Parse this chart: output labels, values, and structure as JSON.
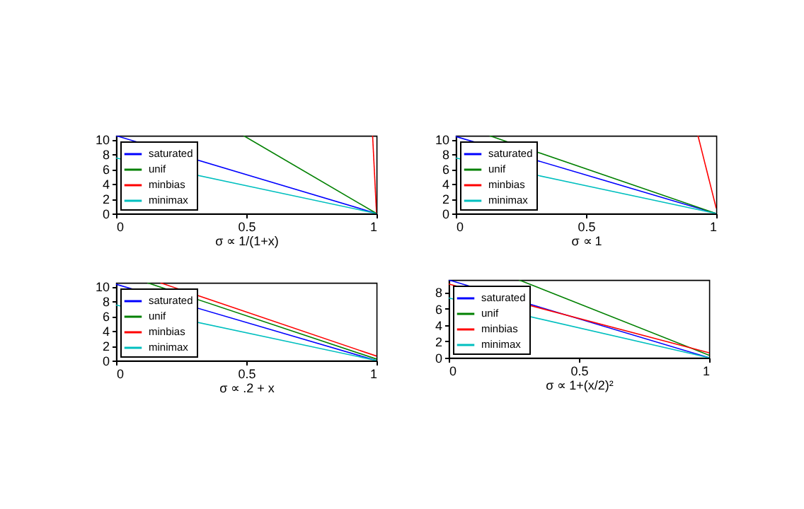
{
  "chart_data": [
    {
      "type": "line",
      "xlabel": "σ ∝ 1/(1+x)",
      "xlim": [
        0,
        1
      ],
      "xticks": [
        0,
        0.5,
        1
      ],
      "ylim": [
        0,
        10.5
      ],
      "yticks": [
        0,
        2,
        4,
        6,
        8,
        10
      ],
      "legend": "bottom left",
      "line_style": "solid",
      "series": [
        {
          "name": "saturated",
          "color": "#0000ff",
          "x": [
            0,
            1
          ],
          "values": [
            10.5,
            0
          ]
        },
        {
          "name": "unif",
          "color": "#008000",
          "x": [
            0.49,
            1
          ],
          "values": [
            10.5,
            0
          ]
        },
        {
          "name": "minbias",
          "color": "#ff0000",
          "x": [
            0.985,
            1
          ],
          "values": [
            10.5,
            0
          ]
        },
        {
          "name": "minimax",
          "color": "#00bfbf",
          "x": [
            0,
            1
          ],
          "values": [
            7.5,
            0
          ]
        }
      ]
    },
    {
      "type": "line",
      "xlabel": "σ ∝ 1",
      "xlim": [
        0,
        1
      ],
      "xticks": [
        0,
        0.5,
        1
      ],
      "ylim": [
        0,
        10.5
      ],
      "yticks": [
        0,
        2,
        4,
        6,
        8,
        10
      ],
      "legend": "bottom left",
      "line_style": "solid",
      "series": [
        {
          "name": "saturated",
          "color": "#0000ff",
          "x": [
            0,
            1
          ],
          "values": [
            10.4,
            0
          ]
        },
        {
          "name": "unif",
          "color": "#008000",
          "x": [
            0.13,
            1
          ],
          "values": [
            10.5,
            0
          ]
        },
        {
          "name": "minbias",
          "color": "#ff0000",
          "x": [
            0.93,
            1
          ],
          "values": [
            10.5,
            0.7
          ]
        },
        {
          "name": "minimax",
          "color": "#00bfbf",
          "x": [
            0,
            1
          ],
          "values": [
            7.5,
            0
          ]
        }
      ]
    },
    {
      "type": "line",
      "xlabel": "σ ∝ .2 + x",
      "xlim": [
        0,
        1
      ],
      "xticks": [
        0,
        0.5,
        1
      ],
      "ylim": [
        0,
        10.5
      ],
      "yticks": [
        0,
        2,
        4,
        6,
        8,
        10
      ],
      "legend": "bottom left",
      "line_style": "solid",
      "series": [
        {
          "name": "saturated",
          "color": "#0000ff",
          "x": [
            0,
            1
          ],
          "values": [
            10.3,
            0
          ]
        },
        {
          "name": "unif",
          "color": "#008000",
          "x": [
            0.12,
            1
          ],
          "values": [
            10.5,
            0.2
          ]
        },
        {
          "name": "minbias",
          "color": "#ff0000",
          "x": [
            0.17,
            1
          ],
          "values": [
            10.5,
            0.6
          ]
        },
        {
          "name": "minimax",
          "color": "#00bfbf",
          "x": [
            0,
            1
          ],
          "values": [
            7.5,
            0
          ]
        }
      ]
    },
    {
      "type": "line",
      "xlabel": "σ ∝ 1+(x/2)²",
      "xlim": [
        0,
        1
      ],
      "xticks": [
        0,
        0.5,
        1
      ],
      "ylim": [
        0,
        9.5
      ],
      "yticks": [
        0,
        2,
        4,
        6,
        8
      ],
      "legend": "bottom left",
      "line_style": "solid",
      "series": [
        {
          "name": "saturated",
          "color": "#0000ff",
          "x": [
            0,
            1
          ],
          "values": [
            9.5,
            0
          ]
        },
        {
          "name": "unif",
          "color": "#008000",
          "x": [
            0.27,
            1
          ],
          "values": [
            9.5,
            0.3
          ]
        },
        {
          "name": "minbias",
          "color": "#ff0000",
          "x": [
            0,
            1
          ],
          "values": [
            9.0,
            0.6
          ]
        },
        {
          "name": "minimax",
          "color": "#00bfbf",
          "x": [
            0,
            1
          ],
          "values": [
            7.3,
            0
          ]
        }
      ]
    }
  ]
}
